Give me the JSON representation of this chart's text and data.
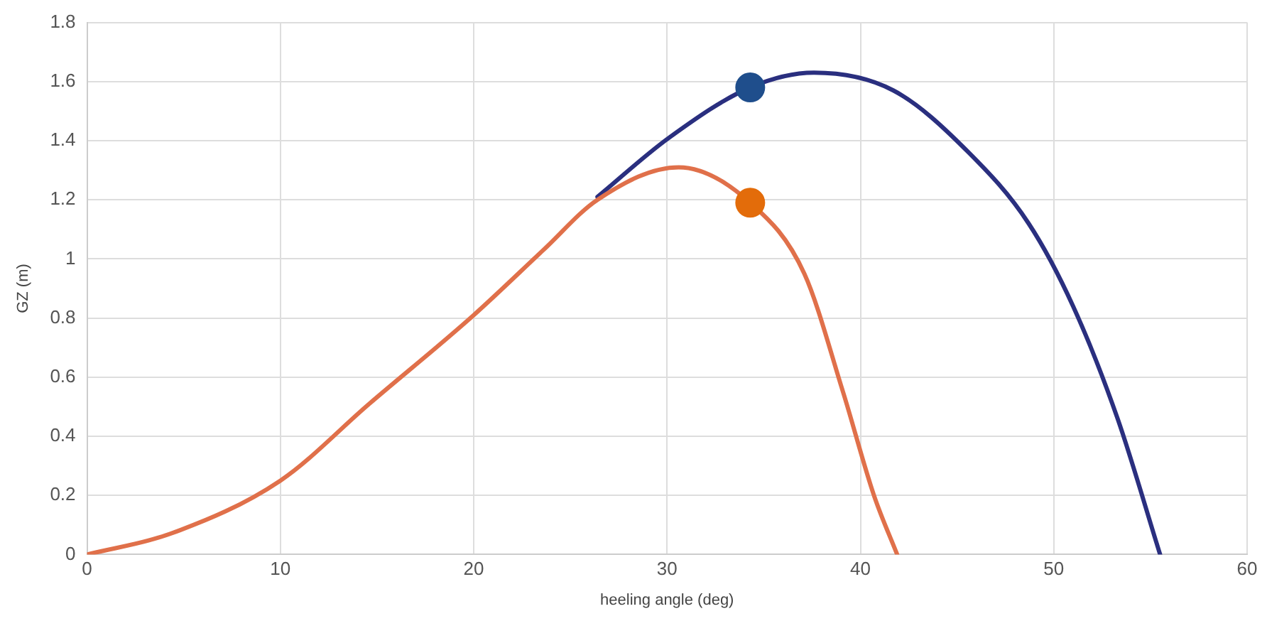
{
  "chart_data": {
    "type": "line",
    "xlabel": "heeling angle (deg)",
    "ylabel": "GZ (m)",
    "xlim": [
      0,
      60
    ],
    "xticks": [
      0,
      10,
      20,
      30,
      40,
      50,
      60
    ],
    "ylim": [
      0,
      1.8
    ],
    "yticks": [
      0,
      0.2,
      0.4,
      0.6,
      0.8,
      1,
      1.2,
      1.4,
      1.6,
      1.8
    ],
    "grid": true,
    "legend": false,
    "marker": "none",
    "line_style": "solid",
    "series": [
      {
        "color": "#2a2f7f",
        "x": [
          26.4,
          30.1,
          34.3,
          37.6,
          41.7,
          45.6,
          48.7,
          51,
          53.3,
          55.5
        ],
        "values": [
          1.21,
          1.41,
          1.58,
          1.63,
          1.57,
          1.36,
          1.12,
          0.84,
          0.46,
          0
        ]
      },
      {
        "color": "#e0704a",
        "x": [
          0,
          4.3,
          10,
          14.6,
          20,
          23.6,
          26.4,
          30.6,
          34.3,
          37.1,
          39.1,
          40.7,
          41.9
        ],
        "values": [
          0,
          0.07,
          0.25,
          0.51,
          0.81,
          1.03,
          1.2,
          1.31,
          1.19,
          0.95,
          0.55,
          0.2,
          0
        ]
      },
      {
        "type": "scatter",
        "color": "#1f4e8c",
        "marker": "circle",
        "x": [
          34.3
        ],
        "values": [
          1.58
        ]
      },
      {
        "type": "scatter",
        "color": "#e36c0a",
        "marker": "circle",
        "x": [
          34.3
        ],
        "values": [
          1.19
        ]
      }
    ]
  }
}
